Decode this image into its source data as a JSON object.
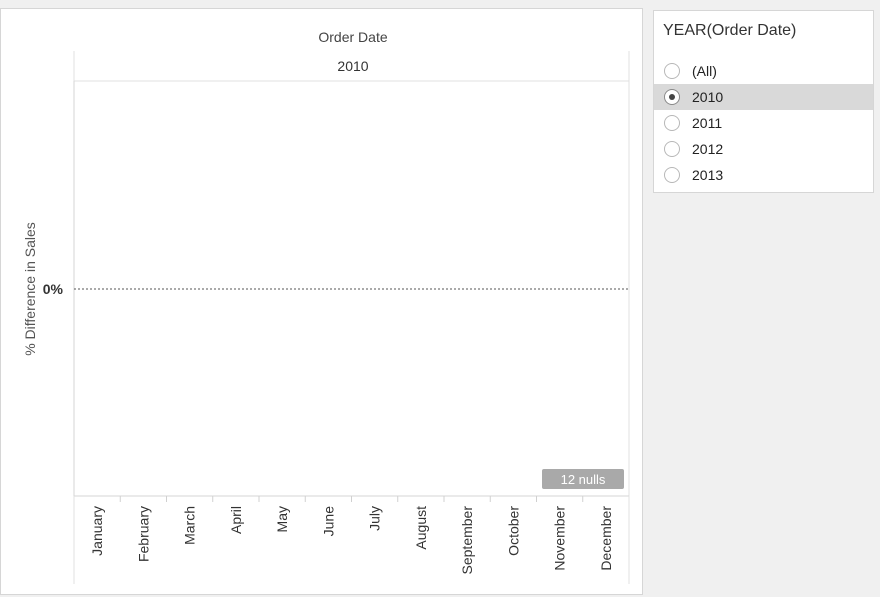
{
  "filter": {
    "title": "YEAR(Order Date)",
    "options": [
      {
        "label": "(All)",
        "selected": false
      },
      {
        "label": "2010",
        "selected": true
      },
      {
        "label": "2011",
        "selected": false
      },
      {
        "label": "2012",
        "selected": false
      },
      {
        "label": "2013",
        "selected": false
      }
    ]
  },
  "chart_data": {
    "type": "line",
    "title": "",
    "column_header": "Order Date",
    "column_value": "2010",
    "xlabel": "",
    "ylabel": "% Difference in Sales",
    "categories": [
      "January",
      "February",
      "March",
      "April",
      "May",
      "June",
      "July",
      "August",
      "September",
      "October",
      "November",
      "December"
    ],
    "series": [
      {
        "values": [
          null,
          null,
          null,
          null,
          null,
          null,
          null,
          null,
          null,
          null,
          null,
          null
        ]
      }
    ],
    "yticks": [
      {
        "value": 0,
        "label": "0%"
      }
    ],
    "ylim": [
      -1,
      1
    ],
    "reference_line": {
      "value": 0,
      "style": "dotted"
    },
    "nulls_indicator": "12 nulls",
    "grid": false
  }
}
